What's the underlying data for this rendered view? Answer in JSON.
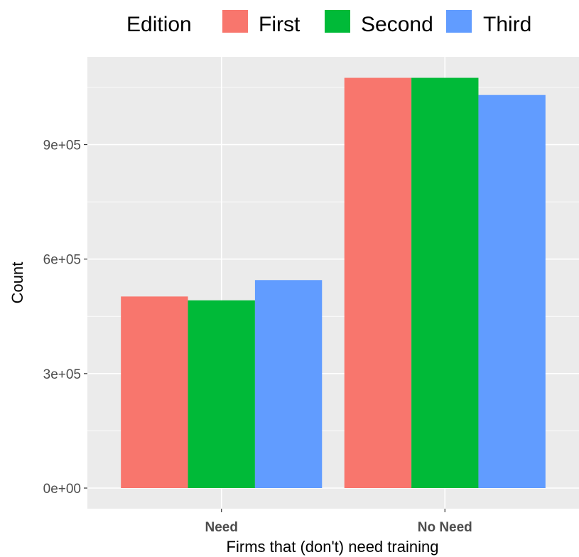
{
  "chart_data": {
    "type": "bar",
    "xlabel": "Firms that (don't) need training",
    "ylabel": "Count",
    "categories": [
      "Need",
      "No Need"
    ],
    "series": [
      {
        "name": "First",
        "color": "#F8766D",
        "values": [
          502000,
          1075000
        ]
      },
      {
        "name": "Second",
        "color": "#00BA38",
        "values": [
          492000,
          1075000
        ]
      },
      {
        "name": "Third",
        "color": "#619CFF",
        "values": [
          545000,
          1030000
        ]
      }
    ],
    "yticks": [
      0,
      300000,
      600000,
      900000
    ],
    "ytick_labels": [
      "0e+00",
      "3e+05",
      "6e+05",
      "9e+05"
    ],
    "ylim": [
      -54000,
      1130000
    ],
    "legend": {
      "title": "Edition",
      "position": "top"
    },
    "grid": true,
    "panel_background": "#EBEBEB"
  }
}
